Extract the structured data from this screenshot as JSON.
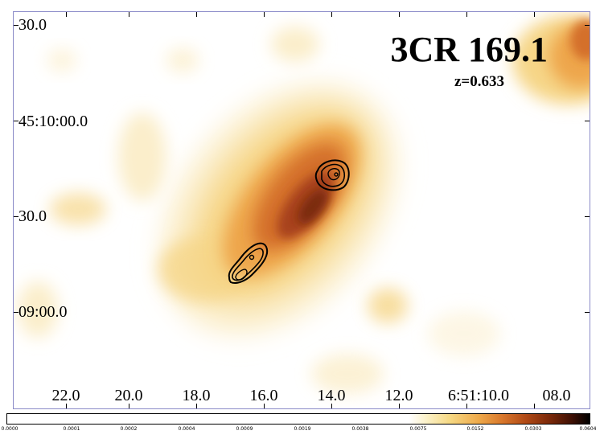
{
  "title": "3CR 169.1",
  "subtitle": "z=0.633",
  "y_axis_labels": [
    "30.0",
    "45:10:00.0",
    "30.0",
    "09:00.0"
  ],
  "x_axis_labels": [
    "22.0",
    "20.0",
    "18.0",
    "16.0",
    "14.0",
    "12.0",
    "6:51:10.0",
    "08.0"
  ],
  "colorbar_labels": [
    "0.0000",
    "0.0001",
    "0.0002",
    "0.0004",
    "0.0009",
    "0.0019",
    "0.0038",
    "0.0075",
    "0.0152",
    "0.0303",
    "0.0604"
  ],
  "colormap": [
    "#ffffff",
    "#fbeecb",
    "#f6d688",
    "#eea64b",
    "#d4702a",
    "#a8431a",
    "#6e200a",
    "#000000"
  ]
}
